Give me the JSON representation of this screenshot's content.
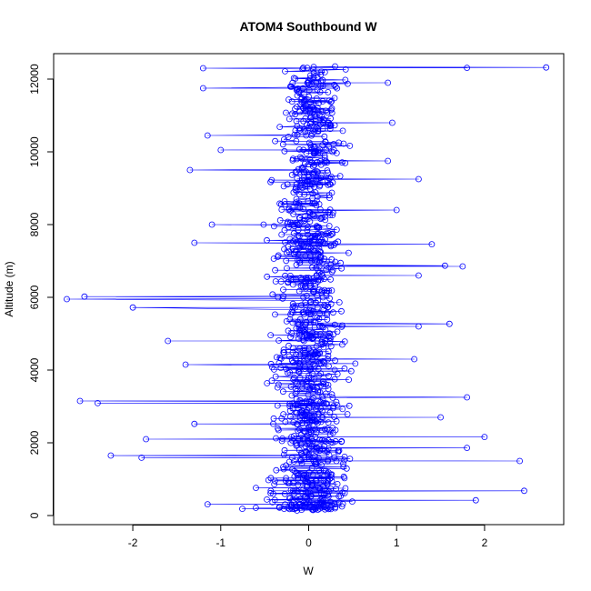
{
  "chart_data": {
    "type": "scatter",
    "title": "ATOM4 Southbound W",
    "xlabel": "W",
    "ylabel": "Altitude (m)",
    "xlim": [
      -2.9,
      2.9
    ],
    "ylim": [
      -250,
      12700
    ],
    "x_ticks": [
      -2,
      -1,
      0,
      1,
      2
    ],
    "x_tick_labels": [
      "-2",
      "-1",
      "0",
      "1",
      "2"
    ],
    "y_ticks": [
      0,
      2000,
      4000,
      6000,
      8000,
      10000,
      12000
    ],
    "y_tick_labels": [
      "0",
      "2000",
      "4000",
      "6000",
      "8000",
      "10000",
      "12000"
    ],
    "grid": false,
    "legend": "none",
    "series": [
      {
        "color": "#0000ff",
        "style": "points-and-lines",
        "marker": "open-circle",
        "sample_points": [
          {
            "x": 0.05,
            "y": 150
          },
          {
            "x": 0.3,
            "y": 200
          },
          {
            "x": -0.2,
            "y": 280
          },
          {
            "x": 2.45,
            "y": 680
          },
          {
            "x": -1.15,
            "y": 310
          },
          {
            "x": 1.9,
            "y": 420
          },
          {
            "x": -0.6,
            "y": 760
          },
          {
            "x": 2.4,
            "y": 1500
          },
          {
            "x": -2.25,
            "y": 1650
          },
          {
            "x": -1.9,
            "y": 1590
          },
          {
            "x": 1.8,
            "y": 1860
          },
          {
            "x": -1.85,
            "y": 2100
          },
          {
            "x": 2.0,
            "y": 2160
          },
          {
            "x": -1.3,
            "y": 2520
          },
          {
            "x": 1.5,
            "y": 2700
          },
          {
            "x": -2.6,
            "y": 3150
          },
          {
            "x": -2.4,
            "y": 3090
          },
          {
            "x": 1.8,
            "y": 3250
          },
          {
            "x": -1.4,
            "y": 4150
          },
          {
            "x": 1.2,
            "y": 4300
          },
          {
            "x": -1.6,
            "y": 4800
          },
          {
            "x": 1.25,
            "y": 5200
          },
          {
            "x": 1.6,
            "y": 5270
          },
          {
            "x": -2.75,
            "y": 5950
          },
          {
            "x": -2.55,
            "y": 6020
          },
          {
            "x": -2.0,
            "y": 5720
          },
          {
            "x": 1.25,
            "y": 6600
          },
          {
            "x": 1.55,
            "y": 6870
          },
          {
            "x": 1.75,
            "y": 6850
          },
          {
            "x": -1.3,
            "y": 7500
          },
          {
            "x": 1.4,
            "y": 7460
          },
          {
            "x": -1.1,
            "y": 8000
          },
          {
            "x": 1.0,
            "y": 8400
          },
          {
            "x": -1.35,
            "y": 9500
          },
          {
            "x": 1.25,
            "y": 9250
          },
          {
            "x": -1.0,
            "y": 10050
          },
          {
            "x": 0.9,
            "y": 9750
          },
          {
            "x": -1.15,
            "y": 10450
          },
          {
            "x": 0.95,
            "y": 10800
          },
          {
            "x": -1.2,
            "y": 11750
          },
          {
            "x": 0.9,
            "y": 11900
          },
          {
            "x": -1.2,
            "y": 12300
          },
          {
            "x": 2.7,
            "y": 12320
          },
          {
            "x": 1.8,
            "y": 12310
          },
          {
            "x": 0.3,
            "y": 12350
          }
        ]
      }
    ]
  }
}
